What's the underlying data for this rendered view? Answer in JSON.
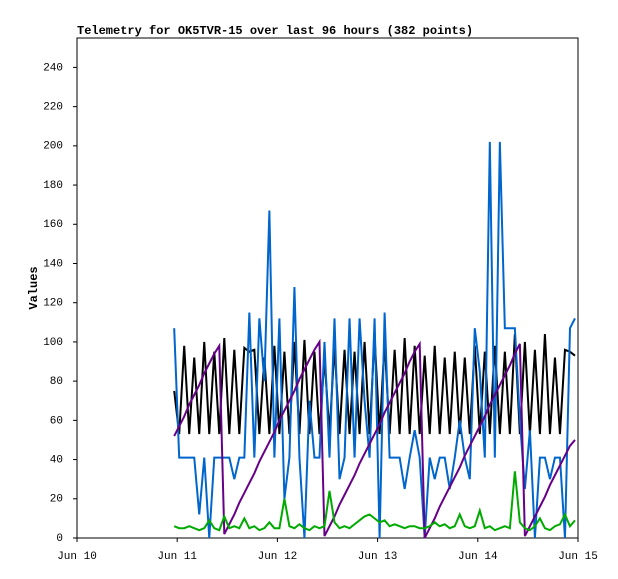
{
  "chart_data": {
    "type": "line",
    "title": "Telemetry for OK5TVR-15 over last 96 hours (382 points)",
    "y_label": "Values",
    "xlim": [
      10,
      15
    ],
    "xticks": [
      {
        "value": 10,
        "label": "Jun 10"
      },
      {
        "value": 11,
        "label": "Jun 11"
      },
      {
        "value": 12,
        "label": "Jun 12"
      },
      {
        "value": 13,
        "label": "Jun 13"
      },
      {
        "value": 14,
        "label": "Jun 14"
      },
      {
        "value": 15,
        "label": "Jun 15"
      }
    ],
    "ylim": [
      0,
      255
    ],
    "yticks": [
      0,
      20,
      40,
      60,
      80,
      100,
      120,
      140,
      160,
      180,
      200,
      220,
      240
    ],
    "grid": false,
    "x": [
      10.97,
      11.02,
      11.07,
      11.12,
      11.17,
      11.22,
      11.27,
      11.32,
      11.37,
      11.42,
      11.47,
      11.52,
      11.57,
      11.62,
      11.67,
      11.72,
      11.77,
      11.82,
      11.87,
      11.92,
      11.97,
      12.02,
      12.07,
      12.12,
      12.17,
      12.22,
      12.27,
      12.32,
      12.37,
      12.42,
      12.47,
      12.52,
      12.57,
      12.62,
      12.67,
      12.72,
      12.77,
      12.82,
      12.87,
      12.92,
      12.97,
      13.02,
      13.07,
      13.12,
      13.17,
      13.22,
      13.27,
      13.32,
      13.37,
      13.42,
      13.47,
      13.52,
      13.57,
      13.62,
      13.67,
      13.72,
      13.77,
      13.82,
      13.87,
      13.92,
      13.97,
      14.02,
      14.07,
      14.12,
      14.17,
      14.22,
      14.27,
      14.32,
      14.37,
      14.42,
      14.47,
      14.52,
      14.57,
      14.62,
      14.67,
      14.72,
      14.77,
      14.82,
      14.87,
      14.92,
      14.97
    ],
    "series": [
      {
        "color": "#000000",
        "values": [
          75,
          53,
          98,
          53,
          92,
          53,
          100,
          53,
          95,
          53,
          102,
          53,
          96,
          53,
          97,
          95,
          96,
          53,
          92,
          53,
          98,
          53,
          95,
          53,
          100,
          53,
          101,
          53,
          95,
          53,
          92,
          53,
          98,
          53,
          96,
          53,
          95,
          53,
          100,
          53,
          103,
          53,
          100,
          53,
          96,
          53,
          102,
          53,
          98,
          53,
          93,
          53,
          98,
          53,
          92,
          53,
          95,
          53,
          92,
          53,
          98,
          53,
          95,
          53,
          98,
          53,
          95,
          53,
          104,
          53,
          100,
          53,
          96,
          53,
          104,
          53,
          92,
          53,
          96,
          95,
          93
        ]
      },
      {
        "color": "#0066cc",
        "values": [
          107,
          41,
          41,
          41,
          41,
          12,
          41,
          0,
          41,
          41,
          41,
          41,
          30,
          41,
          41,
          115,
          41,
          112,
          80,
          167,
          41,
          112,
          20,
          41,
          128,
          41,
          0,
          70,
          41,
          41,
          100,
          41,
          112,
          30,
          41,
          112,
          41,
          112,
          70,
          41,
          112,
          0,
          115,
          41,
          41,
          41,
          25,
          41,
          55,
          41,
          0,
          41,
          30,
          41,
          41,
          25,
          41,
          60,
          41,
          30,
          107,
          85,
          41,
          202,
          41,
          202,
          107,
          107,
          107,
          60,
          25,
          55,
          0,
          41,
          41,
          30,
          41,
          41,
          0,
          107,
          112
        ]
      },
      {
        "color": "#660088",
        "values": [
          52,
          57,
          62,
          68,
          73,
          78,
          84,
          89,
          94,
          98,
          2,
          7,
          12,
          18,
          23,
          28,
          33,
          39,
          44,
          49,
          54,
          60,
          65,
          70,
          75,
          81,
          86,
          91,
          96,
          100,
          1,
          6,
          11,
          17,
          22,
          27,
          32,
          38,
          43,
          48,
          53,
          58,
          64,
          69,
          74,
          79,
          84,
          90,
          95,
          99,
          0,
          5,
          10,
          16,
          21,
          26,
          31,
          36,
          42,
          47,
          52,
          57,
          62,
          68,
          73,
          78,
          83,
          88,
          94,
          99,
          1,
          6,
          11,
          16,
          21,
          27,
          32,
          37,
          42,
          47,
          50
        ]
      },
      {
        "color": "#00aa00",
        "values": [
          6,
          5,
          5,
          6,
          5,
          4,
          5,
          9,
          5,
          4,
          11,
          5,
          6,
          5,
          10,
          5,
          6,
          4,
          5,
          8,
          5,
          5,
          20,
          6,
          5,
          7,
          5,
          4,
          6,
          5,
          6,
          24,
          8,
          5,
          6,
          5,
          7,
          9,
          11,
          12,
          10,
          8,
          9,
          6,
          7,
          6,
          5,
          6,
          6,
          5,
          5,
          6,
          8,
          6,
          7,
          5,
          6,
          12,
          6,
          5,
          6,
          14,
          5,
          6,
          4,
          5,
          6,
          5,
          34,
          8,
          5,
          4,
          6,
          10,
          5,
          4,
          6,
          7,
          12,
          6,
          9
        ]
      }
    ]
  }
}
